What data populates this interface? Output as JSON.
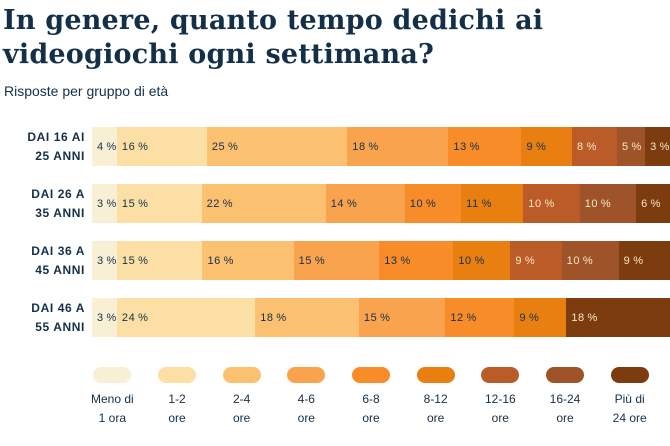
{
  "header": {
    "title": "In genere, quanto tempo dedichi ai videogiochi ogni settimana?",
    "title_lines": [
      "In genere, quanto tempo dedichi ai",
      "videogiochi ogni settimana?"
    ],
    "subtitle": "Risposte per gruppo di età"
  },
  "colors": {
    "background": "#ffffff",
    "text_dark": "#143049",
    "text_light": "#F7E9C8",
    "palette": [
      "#F8EFD4",
      "#FBDFA4",
      "#FBC171",
      "#F9A34E",
      "#F78C28",
      "#E97F10",
      "#BB5B27",
      "#9F5329",
      "#7D3B10"
    ],
    "light_text_from_index": 6
  },
  "chart_data": {
    "type": "bar",
    "variant": "horizontal-stacked-percent",
    "unit": "%",
    "grid": false,
    "legend_position": "bottom",
    "categories": [
      "Meno di 1 ora",
      "1-2 ore",
      "2-4 ore",
      "4-6 ore",
      "6-8 ore",
      "8-12 ore",
      "12-16 ore",
      "16-24 ore",
      "Più di 24 ore"
    ],
    "legend_lines": [
      [
        "Meno di",
        "1 ora"
      ],
      [
        "1-2",
        "ore"
      ],
      [
        "2-4",
        "ore"
      ],
      [
        "4-6",
        "ore"
      ],
      [
        "6-8",
        "ore"
      ],
      [
        "8-12",
        "ore"
      ],
      [
        "12-16",
        "ore"
      ],
      [
        "16-24",
        "ore"
      ],
      [
        "Più di",
        "24 ore"
      ]
    ],
    "rows": [
      {
        "label": "DAI 16 AI 25 ANNI",
        "label_lines": [
          "DAI 16 AI",
          "25 ANNI"
        ],
        "values": [
          4,
          16,
          25,
          18,
          13,
          9,
          8,
          5,
          3
        ]
      },
      {
        "label": "DAI 26 A 35 ANNI",
        "label_lines": [
          "DAI 26 A",
          "35 ANNI"
        ],
        "values": [
          3,
          15,
          22,
          14,
          10,
          11,
          10,
          10,
          6
        ]
      },
      {
        "label": "DAI 36 A 45 ANNI",
        "label_lines": [
          "DAI 36 A",
          "45 ANNI"
        ],
        "values": [
          3,
          15,
          16,
          15,
          13,
          10,
          9,
          10,
          9
        ]
      },
      {
        "label": "DAI 46 A 55 ANNI",
        "label_lines": [
          "DAI 46 A",
          "55 ANNI"
        ],
        "values": [
          3,
          24,
          18,
          15,
          12,
          9,
          0,
          0,
          18
        ]
      }
    ]
  }
}
